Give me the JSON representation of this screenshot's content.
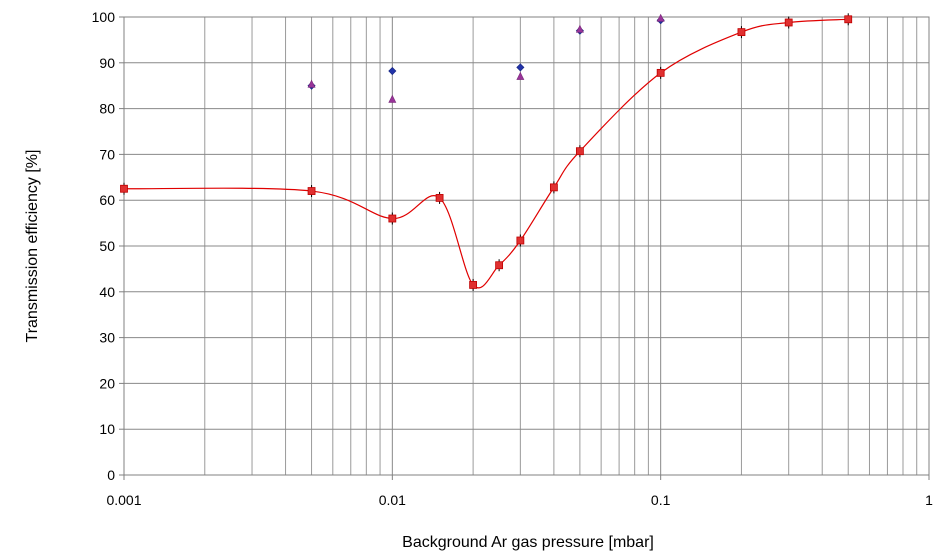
{
  "chart_data": {
    "type": "scatter",
    "title": "",
    "xlabel": "Background Ar gas pressure [mbar]",
    "ylabel": "Transmission efficiency [%]",
    "x_scale": "log",
    "xlim": [
      0.001,
      1
    ],
    "ylim": [
      0,
      100
    ],
    "x_ticks": [
      0.001,
      0.01,
      0.1,
      1
    ],
    "x_tick_labels": [
      "0.001",
      "0.01",
      "0.1",
      "1"
    ],
    "y_ticks": [
      0,
      10,
      20,
      30,
      40,
      50,
      60,
      70,
      80,
      90,
      100
    ],
    "y_tick_labels": [
      "0",
      "10",
      "20",
      "30",
      "40",
      "50",
      "60",
      "70",
      "80",
      "90",
      "100"
    ],
    "grid": true,
    "legend": "none",
    "series": [
      {
        "marker": "square",
        "line": "smooth",
        "color": "#e03030",
        "line_color": "#e00000",
        "x": [
          0.001,
          0.005,
          0.01,
          0.015,
          0.02,
          0.025,
          0.03,
          0.04,
          0.05,
          0.1,
          0.2,
          0.3,
          0.5
        ],
        "y": [
          62.5,
          62,
          56,
          60.5,
          41.5,
          45.8,
          51.2,
          62.8,
          70.7,
          87.8,
          96.7,
          98.8,
          99.5
        ]
      },
      {
        "marker": "diamond",
        "line": "none",
        "color": "#2233aa",
        "x": [
          0.005,
          0.01,
          0.03,
          0.05,
          0.1
        ],
        "y": [
          85,
          88.2,
          89,
          97,
          99.3
        ]
      },
      {
        "marker": "triangle",
        "line": "none",
        "color": "#993399",
        "x": [
          0.005,
          0.01,
          0.03,
          0.05,
          0.1
        ],
        "y": [
          85.3,
          82,
          87,
          97.3,
          99.7
        ]
      }
    ]
  }
}
